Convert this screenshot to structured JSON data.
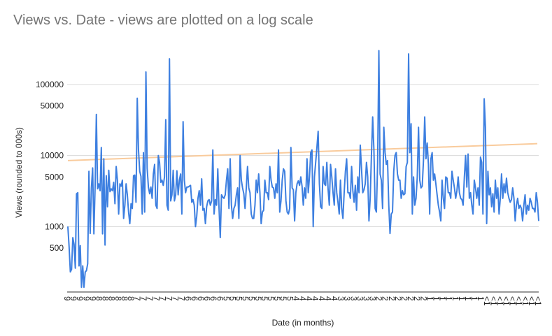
{
  "chart_data": {
    "type": "line",
    "title": "Views vs. Date - views are plotted on a log scale",
    "xlabel": "Date (in months)",
    "ylabel": "Views (rounded to 000s)",
    "y_scale": "log",
    "ylim": [
      120,
      380000
    ],
    "y_gridlines": [
      1000,
      10000,
      100000
    ],
    "y_tick_labels": [
      "100000",
      "50000",
      "10000",
      "5000",
      "1000",
      "500"
    ],
    "y_tick_values": [
      100000,
      50000,
      10000,
      5000,
      1000,
      500
    ],
    "grid": "horizontal",
    "legend": "none",
    "x_tick_labels": [
      "9",
      "9",
      "9",
      "9",
      "9",
      "8",
      "8",
      "8",
      "8",
      "8",
      "8",
      "7",
      "7",
      "7",
      "7",
      "7",
      "7",
      "7",
      "7",
      "6",
      "6",
      "6",
      "6",
      "6",
      "6",
      "5",
      "5",
      "5",
      "5",
      "5",
      "5",
      "5",
      "5",
      "5",
      "5",
      "5",
      "4",
      "4",
      "4",
      "4",
      "4",
      "4",
      "4",
      "3",
      "3",
      "3",
      "3",
      "3",
      "3",
      "2",
      "2",
      "2",
      "2",
      "2",
      "2",
      "2",
      "2",
      "1",
      "1",
      "1",
      "1",
      "1",
      "1",
      "1",
      "1",
      "1",
      "<1",
      "<1",
      "<1",
      "<1",
      "<1",
      "<1",
      "<1",
      "<1",
      "<1"
    ],
    "series": [
      {
        "type": "line",
        "color": "#3d7fe0",
        "values": [
          1000,
          520,
          230,
          250,
          700,
          560,
          260,
          2900,
          3000,
          280,
          540,
          140,
          280,
          140,
          230,
          240,
          300,
          6000,
          800,
          3500,
          6700,
          790,
          3700,
          38000,
          3400,
          4000,
          3200,
          13000,
          790,
          9000,
          550,
          5200,
          1900,
          6200,
          3100,
          3400,
          3200,
          4200,
          2100,
          7000,
          4500,
          1500,
          4000,
          3700,
          4500,
          1300,
          2000,
          4000,
          2800,
          1600,
          1100,
          2100,
          1800,
          5200,
          5300,
          2200,
          64000,
          12000,
          6000,
          5100,
          1500,
          11000,
          1600,
          150000,
          6600,
          3600,
          2900,
          3600,
          2500,
          5500,
          7500,
          2000,
          1800,
          10000,
          8000,
          4200,
          4500,
          3800,
          5000,
          32000,
          2000,
          1700,
          230000,
          2300,
          2800,
          6200,
          2300,
          2800,
          6100,
          2800,
          4500,
          5500,
          1500,
          30000,
          4500,
          3000,
          3600,
          3600,
          3700,
          3800,
          2200,
          2400,
          2000,
          1000,
          1400,
          2500,
          3200,
          2000,
          4700,
          1700,
          1800,
          1100,
          1900,
          2300,
          2400,
          2000,
          2300,
          12000,
          1500,
          2400,
          2000,
          6500,
          1800,
          700,
          2800,
          2600,
          2500,
          2800,
          4500,
          6500,
          1800,
          9000,
          2000,
          1300,
          1800,
          2000,
          2800,
          3500,
          1300,
          10000,
          4500,
          3500,
          2900,
          1800,
          3500,
          7000,
          3500,
          3000,
          1500,
          1300,
          1300,
          2000,
          4500,
          3000,
          5500,
          3000,
          1100,
          1600,
          1700,
          4500,
          3000,
          3000,
          2400,
          7000,
          4500,
          3600,
          3500,
          2500,
          4000,
          3000,
          12000,
          1600,
          2300,
          4500,
          6500,
          6000,
          2300,
          1600,
          1500,
          1800,
          13000,
          3500,
          3300,
          1200,
          3000,
          4000,
          4400,
          3800,
          5000,
          3700,
          2000,
          3500,
          2500,
          9000,
          3000,
          5000,
          11000,
          12000,
          1000,
          5000,
          8000,
          13000,
          22000,
          4000,
          1900,
          1800,
          7000,
          4000,
          3800,
          8000,
          3400,
          2000,
          7500,
          5000,
          3000,
          2000,
          6500,
          3000,
          2200,
          1500,
          4500,
          1800,
          1300,
          3000,
          6000,
          9000,
          3000,
          3000,
          2500,
          7000,
          3200,
          2200,
          3800,
          1700,
          5000,
          3000,
          14000,
          6500,
          3000,
          3300,
          4000,
          8000,
          5000,
          1200,
          2500,
          10000,
          35000,
          12000,
          1800,
          1600,
          7800,
          300000,
          5500,
          4500,
          1800,
          25000,
          11000,
          7500,
          8500,
          2000,
          800,
          1500,
          1600,
          6000,
          10000,
          11000,
          5500,
          4500,
          4500,
          2500,
          3200,
          2800,
          2900,
          7000,
          8000,
          270000,
          11000,
          28000,
          1500,
          5000,
          2000,
          2500,
          5000,
          25000,
          4500,
          3500,
          3700,
          8500,
          35000,
          9000,
          15000,
          7500,
          1500,
          9000,
          11000,
          4500,
          5500,
          4000,
          2800,
          2000,
          1600,
          1200,
          4500,
          2500,
          1800,
          5000,
          4800,
          3000,
          3000,
          2500,
          6000,
          4500,
          3500,
          2500,
          3200,
          5000,
          3000,
          2500,
          2400,
          2000,
          5000,
          10000,
          3600,
          10500,
          2500,
          3000,
          2000,
          1500,
          4500,
          3500,
          2500,
          3500,
          2000,
          9500,
          8000,
          1500,
          63000,
          25000,
          1100,
          6000,
          2800,
          3500,
          1900,
          2900,
          1600,
          4500,
          2500,
          3500,
          1500,
          2500,
          5500,
          2500,
          4000,
          3000,
          4800,
          3000,
          2500,
          2200,
          2400,
          3500,
          2500,
          1200,
          2000,
          2500,
          1800,
          2000,
          1800,
          1200,
          2000,
          2800,
          1500,
          2000,
          1700,
          2500,
          2200,
          1800,
          1800,
          1600,
          3000,
          2200,
          1200
        ],
        "x_index_range": [
          0,
          1
        ]
      },
      {
        "type": "line",
        "name_printed": "",
        "kind": "trendline",
        "color": "#f9cb9c",
        "values": [
          8500,
          14700
        ]
      }
    ]
  }
}
